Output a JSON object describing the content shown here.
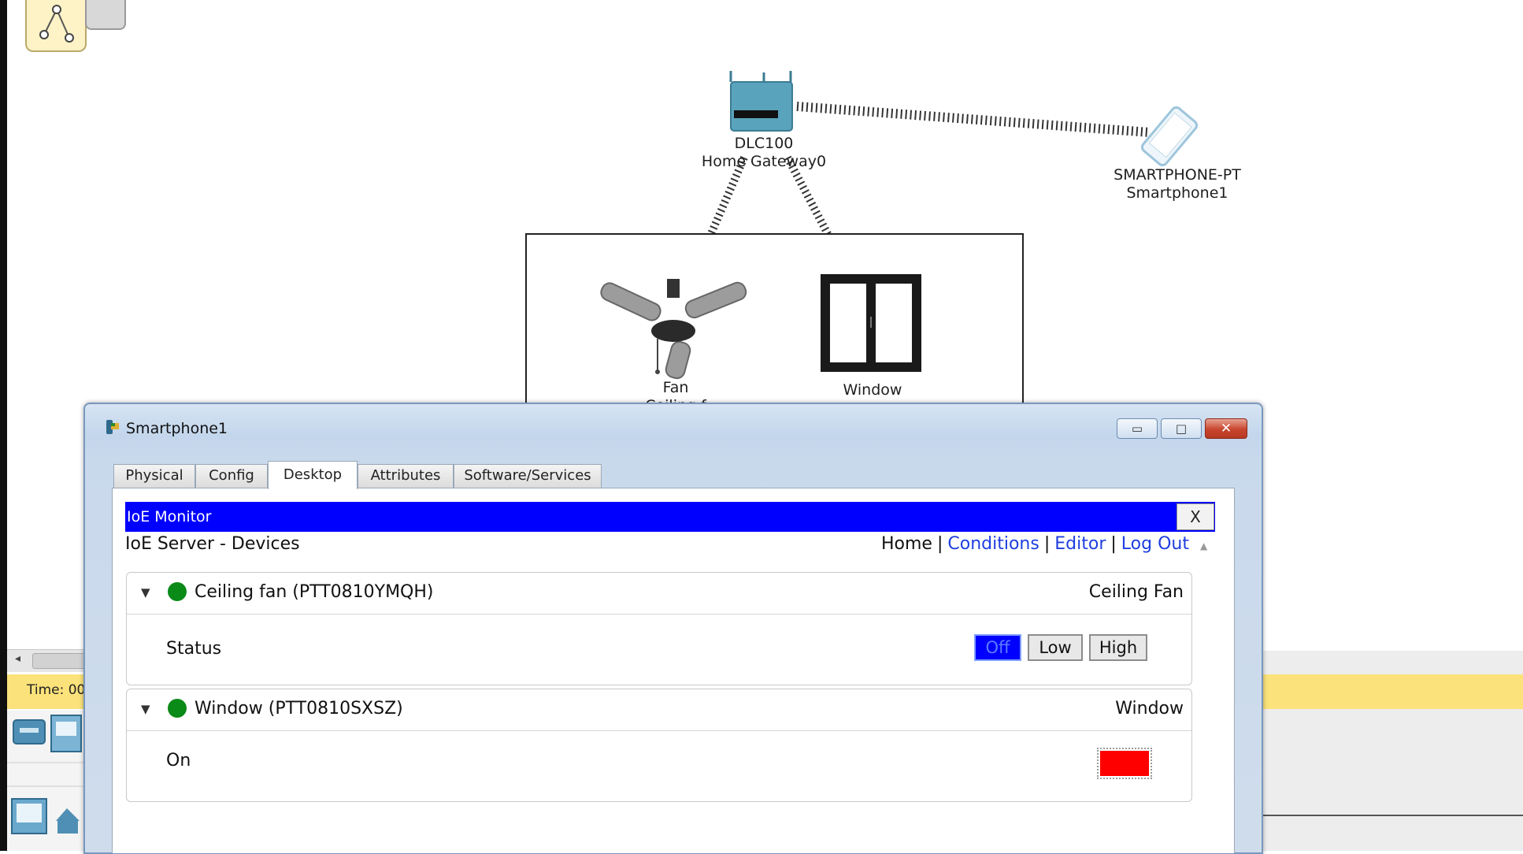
{
  "network": {
    "gateway": {
      "model": "DLC100",
      "name": "Home Gateway0"
    },
    "smartphone": {
      "model": "SMARTPHONE-PT",
      "name": "Smartphone1"
    },
    "fan": {
      "name": "Fan",
      "sublabel": "Ceiling f"
    },
    "window": {
      "name": "Window",
      "sublabel": "..."
    }
  },
  "workspace": {
    "time_label": "Time: 00"
  },
  "dialog": {
    "title": "Smartphone1",
    "controls": {
      "minimize": "▭",
      "maximize": "□",
      "close": "✕"
    },
    "tabs": [
      "Physical",
      "Config",
      "Desktop",
      "Attributes",
      "Software/Services"
    ],
    "active_tab": "Desktop"
  },
  "ioe": {
    "app_title": "IoE Monitor",
    "close_label": "X",
    "server_title": "IoE Server - Devices",
    "nav": {
      "home": "Home",
      "conditions": "Conditions",
      "editor": "Editor",
      "logout": "Log Out"
    },
    "devices": [
      {
        "name": "Ceiling fan (PTT0810YMQH)",
        "type": "Ceiling Fan",
        "status_color": "#0a8a17",
        "property": "Status",
        "options": [
          "Off",
          "Low",
          "High"
        ],
        "selected": "Off"
      },
      {
        "name": "Window (PTT0810SXSZ)",
        "type": "Window",
        "status_color": "#0a8a17",
        "property": "On",
        "indicator_color": "#ff0000"
      }
    ]
  },
  "colors": {
    "header_blue": "#0000ff",
    "link_blue": "#1e3ee0",
    "status_green": "#0a8a17",
    "alarm_red": "#ff0000"
  }
}
